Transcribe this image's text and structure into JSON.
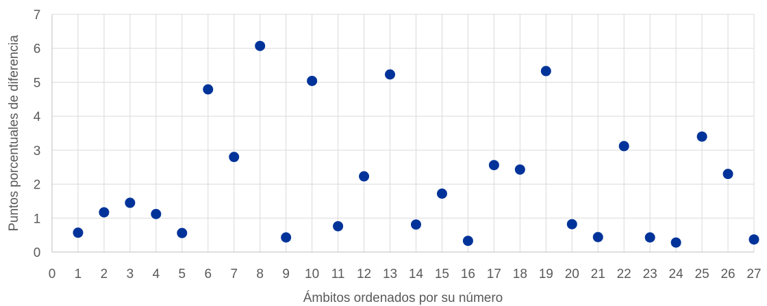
{
  "chart_data": {
    "type": "scatter",
    "title": "",
    "xlabel": "Ámbitos ordenados por su número",
    "ylabel": "Puntos porcentuales de diferencia",
    "xlim": [
      0,
      27
    ],
    "ylim": [
      0,
      7
    ],
    "x_ticks": [
      0,
      1,
      2,
      3,
      4,
      5,
      6,
      7,
      8,
      9,
      10,
      11,
      12,
      13,
      14,
      15,
      16,
      17,
      18,
      19,
      20,
      21,
      22,
      23,
      24,
      25,
      26,
      27
    ],
    "y_ticks": [
      0,
      1,
      2,
      3,
      4,
      5,
      6,
      7
    ],
    "grid": true,
    "legend": "none",
    "marker_color": "#003399",
    "series": [
      {
        "x": [
          1,
          2,
          3,
          4,
          5,
          6,
          7,
          8,
          9,
          10,
          11,
          12,
          13,
          14,
          15,
          16,
          17,
          18,
          19,
          20,
          21,
          22,
          23,
          24,
          25,
          26,
          27
        ],
        "y": [
          0.57,
          1.17,
          1.45,
          1.12,
          0.56,
          4.79,
          2.8,
          6.07,
          0.43,
          5.04,
          0.76,
          2.23,
          5.23,
          0.81,
          1.72,
          0.33,
          2.56,
          2.43,
          5.33,
          0.82,
          0.44,
          3.12,
          0.43,
          0.28,
          3.4,
          2.3,
          0.37
        ]
      }
    ]
  }
}
